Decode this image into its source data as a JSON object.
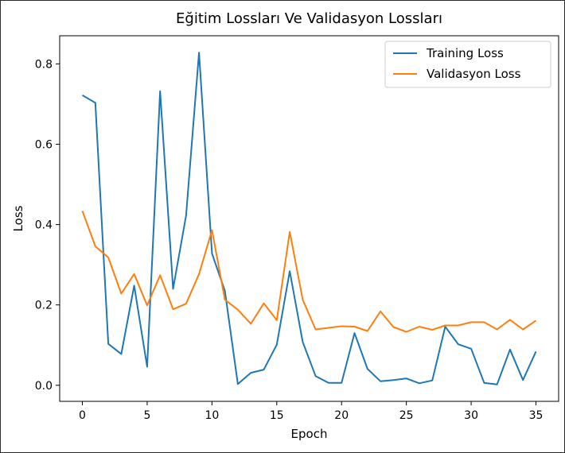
{
  "chart_data": {
    "type": "line",
    "title": "Eğitim Lossları Ve Validasyon Lossları",
    "xlabel": "Epoch",
    "ylabel": "Loss",
    "xlim": [
      -1.75,
      36.75
    ],
    "ylim": [
      -0.04,
      0.87
    ],
    "xticks": [
      0,
      5,
      10,
      15,
      20,
      25,
      30,
      35
    ],
    "yticks": [
      0.0,
      0.2,
      0.4,
      0.6,
      0.8
    ],
    "ytick_labels": [
      "0.0",
      "0.2",
      "0.4",
      "0.6",
      "0.8"
    ],
    "grid": false,
    "legend_position": "top-right",
    "x": [
      0,
      1,
      2,
      3,
      4,
      5,
      6,
      7,
      8,
      9,
      10,
      11,
      12,
      13,
      14,
      15,
      16,
      17,
      18,
      19,
      20,
      21,
      22,
      23,
      24,
      25,
      26,
      27,
      28,
      29,
      30,
      31,
      32,
      33,
      34,
      35
    ],
    "series": [
      {
        "name": "Training Loss",
        "color": "#1f77b4",
        "values": [
          0.722,
          0.703,
          0.103,
          0.078,
          0.248,
          0.046,
          0.732,
          0.24,
          0.422,
          0.828,
          0.328,
          0.235,
          0.003,
          0.031,
          0.039,
          0.101,
          0.284,
          0.108,
          0.023,
          0.006,
          0.006,
          0.13,
          0.041,
          0.01,
          0.013,
          0.017,
          0.005,
          0.012,
          0.146,
          0.102,
          0.091,
          0.006,
          0.002,
          0.089,
          0.013,
          0.084
        ]
      },
      {
        "name": "Validasyon Loss",
        "color": "#ff7f0e",
        "values": [
          0.434,
          0.346,
          0.318,
          0.228,
          0.277,
          0.199,
          0.274,
          0.189,
          0.203,
          0.277,
          0.386,
          0.213,
          0.188,
          0.153,
          0.204,
          0.162,
          0.382,
          0.213,
          0.139,
          0.143,
          0.147,
          0.146,
          0.135,
          0.184,
          0.145,
          0.133,
          0.146,
          0.138,
          0.149,
          0.149,
          0.157,
          0.157,
          0.139,
          0.163,
          0.139,
          0.161
        ]
      }
    ]
  }
}
